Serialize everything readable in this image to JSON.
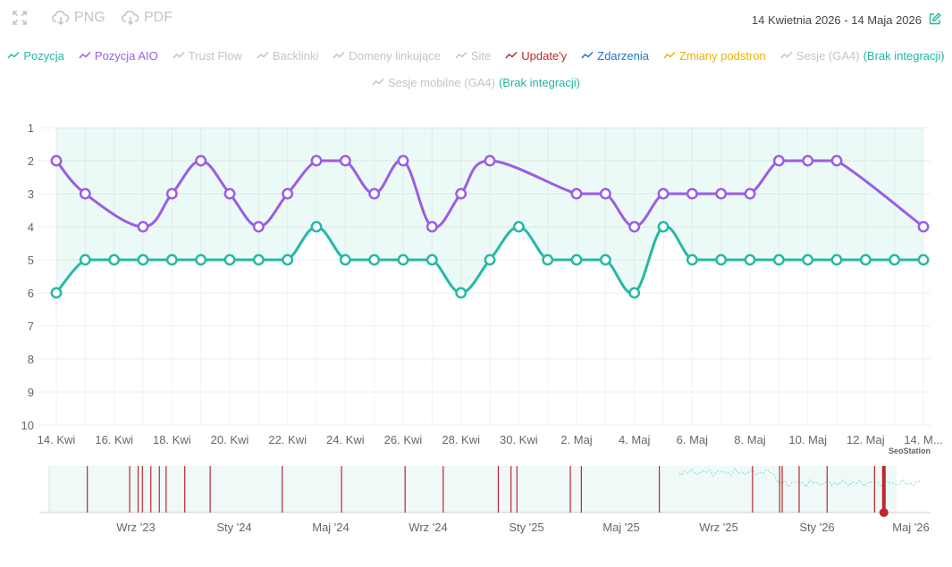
{
  "toolbar": {
    "fullscreen_icon": "expand-icon",
    "png_label": "PNG",
    "pdf_label": "PDF",
    "date_range": "14 Kwietnia 2026 - 14 Maja 2026"
  },
  "legend": {
    "row1": [
      {
        "label": "Pozycja",
        "color": "#26b8a6"
      },
      {
        "label": "Pozycja AIO",
        "color": "#9b5de5"
      },
      {
        "label": "Trust Flow",
        "color": "#c4c4c4"
      },
      {
        "label": "Backlinki",
        "color": "#c4c4c4"
      },
      {
        "label": "Domeny linkujące",
        "color": "#c4c4c4"
      },
      {
        "label": "Site",
        "color": "#c4c4c4"
      },
      {
        "label": "Update'y",
        "color": "#c0262d"
      },
      {
        "label": "Zdarzenia",
        "color": "#1e73c8"
      },
      {
        "label": "Zmiany podstron",
        "color": "#e6b400"
      },
      {
        "label": "Sesje (GA4)",
        "color": "#c4c4c4",
        "extra": "(Brak integracji)"
      }
    ],
    "row2": [
      {
        "label": "Sesje mobilne (GA4)",
        "color": "#c4c4c4",
        "extra": "(Brak integracji)"
      }
    ]
  },
  "chart_data": {
    "type": "line",
    "x": [
      "14. Kwi",
      "15. Kwi",
      "16. Kwi",
      "17. Kwi",
      "18. Kwi",
      "19. Kwi",
      "20. Kwi",
      "21. Kwi",
      "22. Kwi",
      "23. Kwi",
      "24. Kwi",
      "25. Kwi",
      "26. Kwi",
      "27. Kwi",
      "28. Kwi",
      "29. Kwi",
      "30. Kwi",
      "1. Maj",
      "2. Maj",
      "3. Maj",
      "4. Maj",
      "5. Maj",
      "6. Maj",
      "7. Maj",
      "8. Maj",
      "9. Maj",
      "10. Maj",
      "11. Maj",
      "12. Maj",
      "13. Maj",
      "14. Maj"
    ],
    "xticks": [
      "14. Kwi",
      "16. Kwi",
      "18. Kwi",
      "20. Kwi",
      "22. Kwi",
      "24. Kwi",
      "26. Kwi",
      "28. Kwi",
      "30. Kwi",
      "2. Maj",
      "4. Maj",
      "6. Maj",
      "8. Maj",
      "10. Maj",
      "12. Maj",
      "14. M..."
    ],
    "series": [
      {
        "name": "Pozycja",
        "color": "#26b8a6",
        "values": [
          6,
          5,
          5,
          5,
          5,
          5,
          5,
          5,
          5,
          4,
          5,
          5,
          5,
          5,
          6,
          5,
          4,
          5,
          5,
          5,
          6,
          4,
          5,
          5,
          5,
          5,
          5,
          5,
          5,
          5,
          5
        ]
      },
      {
        "name": "Pozycja AIO",
        "color": "#9b5de5",
        "values": [
          2,
          3,
          null,
          4,
          3,
          2,
          3,
          4,
          3,
          2,
          2,
          3,
          2,
          4,
          3,
          2,
          null,
          null,
          3,
          3,
          4,
          3,
          3,
          3,
          3,
          2,
          2,
          2,
          null,
          null,
          4
        ]
      }
    ],
    "y_reversed": true,
    "ylim": [
      1,
      10
    ],
    "yticks": [
      1,
      2,
      3,
      4,
      5,
      6,
      7,
      8,
      9,
      10
    ],
    "grid": true,
    "legend_position": "top-center",
    "watermark": "SeoStation",
    "navigator": {
      "labels": [
        "Wrz '23",
        "Sty '24",
        "Maj '24",
        "Wrz '24",
        "Sty '25",
        "Maj '25",
        "Wrz '25",
        "Sty '26",
        "Maj '26"
      ],
      "update_marker_color": "#c0262d",
      "update_markers": [
        0.045,
        0.095,
        0.105,
        0.11,
        0.12,
        0.13,
        0.138,
        0.16,
        0.19,
        0.275,
        0.345,
        0.42,
        0.465,
        0.53,
        0.545,
        0.552,
        0.615,
        0.628,
        0.72,
        0.83,
        0.862,
        0.865,
        0.885,
        0.918,
        0.974
      ]
    }
  }
}
